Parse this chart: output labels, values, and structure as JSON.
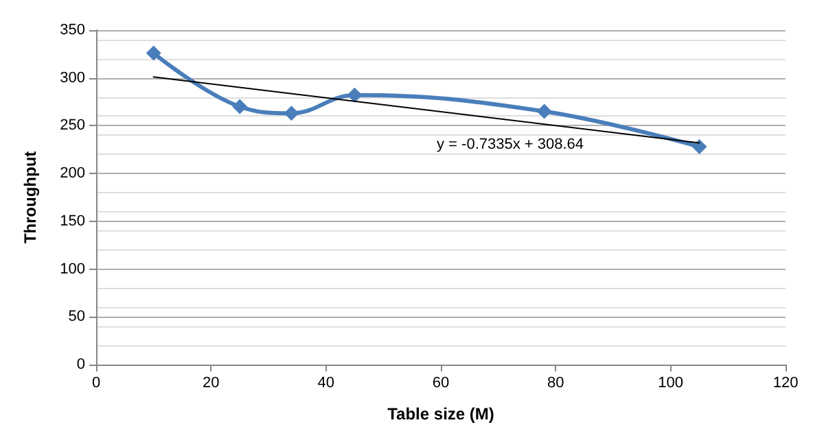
{
  "chart_data": {
    "type": "line",
    "xlabel": "Table size (M)",
    "ylabel": "Throughput",
    "xlim": [
      0,
      120
    ],
    "xticks": [
      0,
      20,
      40,
      60,
      80,
      100,
      120
    ],
    "ylim": [
      0,
      350
    ],
    "yticks": [
      0,
      50,
      100,
      150,
      200,
      250,
      300,
      350
    ],
    "grid": "y",
    "marker": "diamond",
    "series": [
      {
        "color": "#4a7ebb",
        "x": [
          10,
          25,
          34,
          45,
          78,
          105
        ],
        "values": [
          326,
          270,
          263,
          282,
          265,
          228
        ]
      },
      {
        "color": "#000000",
        "x": [
          10,
          105
        ],
        "values": [
          301,
          232
        ],
        "marker": "none"
      }
    ],
    "annotations": [
      "y = -0.7335x + 308.64"
    ]
  }
}
